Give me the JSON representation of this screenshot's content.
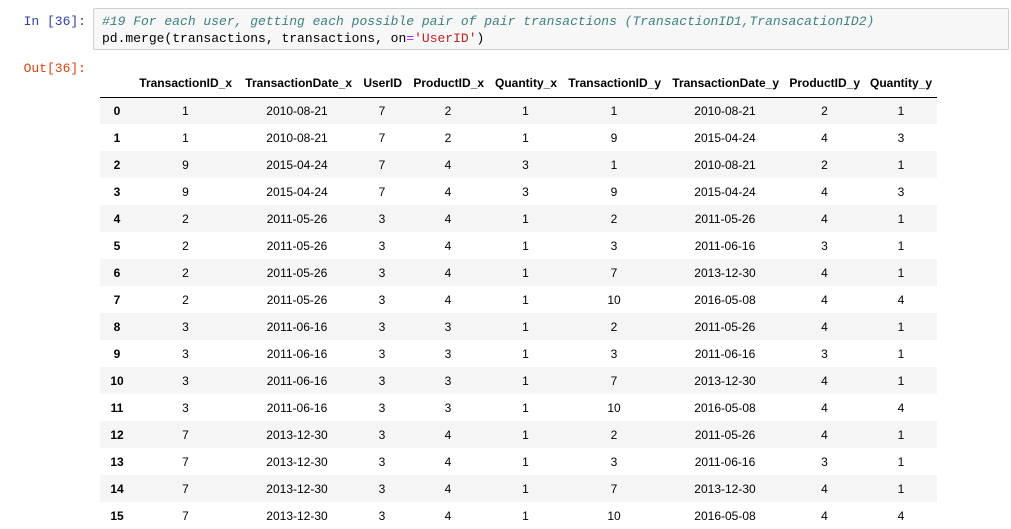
{
  "cell": {
    "in_prompt": "In [36]:",
    "out_prompt": "Out[36]:",
    "code": {
      "line1_comment": "#19 For each user, getting each possible pair of pair transactions (TransactionID1,TransacationID2)",
      "line2_part1": "pd",
      "line2_part2": ".",
      "line2_part3": "merge(transactions, transactions, on",
      "line2_op": "=",
      "line2_str": "'UserID'",
      "line2_end": ")"
    }
  },
  "table": {
    "columns": [
      "TransactionID_x",
      "TransactionDate_x",
      "UserID",
      "ProductID_x",
      "Quantity_x",
      "TransactionID_y",
      "TransactionDate_y",
      "ProductID_y",
      "Quantity_y"
    ],
    "rows": [
      {
        "idx": "0",
        "cells": [
          "1",
          "2010-08-21",
          "7",
          "2",
          "1",
          "1",
          "2010-08-21",
          "2",
          "1"
        ]
      },
      {
        "idx": "1",
        "cells": [
          "1",
          "2010-08-21",
          "7",
          "2",
          "1",
          "9",
          "2015-04-24",
          "4",
          "3"
        ]
      },
      {
        "idx": "2",
        "cells": [
          "9",
          "2015-04-24",
          "7",
          "4",
          "3",
          "1",
          "2010-08-21",
          "2",
          "1"
        ]
      },
      {
        "idx": "3",
        "cells": [
          "9",
          "2015-04-24",
          "7",
          "4",
          "3",
          "9",
          "2015-04-24",
          "4",
          "3"
        ]
      },
      {
        "idx": "4",
        "cells": [
          "2",
          "2011-05-26",
          "3",
          "4",
          "1",
          "2",
          "2011-05-26",
          "4",
          "1"
        ]
      },
      {
        "idx": "5",
        "cells": [
          "2",
          "2011-05-26",
          "3",
          "4",
          "1",
          "3",
          "2011-06-16",
          "3",
          "1"
        ]
      },
      {
        "idx": "6",
        "cells": [
          "2",
          "2011-05-26",
          "3",
          "4",
          "1",
          "7",
          "2013-12-30",
          "4",
          "1"
        ]
      },
      {
        "idx": "7",
        "cells": [
          "2",
          "2011-05-26",
          "3",
          "4",
          "1",
          "10",
          "2016-05-08",
          "4",
          "4"
        ]
      },
      {
        "idx": "8",
        "cells": [
          "3",
          "2011-06-16",
          "3",
          "3",
          "1",
          "2",
          "2011-05-26",
          "4",
          "1"
        ]
      },
      {
        "idx": "9",
        "cells": [
          "3",
          "2011-06-16",
          "3",
          "3",
          "1",
          "3",
          "2011-06-16",
          "3",
          "1"
        ]
      },
      {
        "idx": "10",
        "cells": [
          "3",
          "2011-06-16",
          "3",
          "3",
          "1",
          "7",
          "2013-12-30",
          "4",
          "1"
        ]
      },
      {
        "idx": "11",
        "cells": [
          "3",
          "2011-06-16",
          "3",
          "3",
          "1",
          "10",
          "2016-05-08",
          "4",
          "4"
        ]
      },
      {
        "idx": "12",
        "cells": [
          "7",
          "2013-12-30",
          "3",
          "4",
          "1",
          "2",
          "2011-05-26",
          "4",
          "1"
        ]
      },
      {
        "idx": "13",
        "cells": [
          "7",
          "2013-12-30",
          "3",
          "4",
          "1",
          "3",
          "2011-06-16",
          "3",
          "1"
        ]
      },
      {
        "idx": "14",
        "cells": [
          "7",
          "2013-12-30",
          "3",
          "4",
          "1",
          "7",
          "2013-12-30",
          "4",
          "1"
        ]
      },
      {
        "idx": "15",
        "cells": [
          "7",
          "2013-12-30",
          "3",
          "4",
          "1",
          "10",
          "2016-05-08",
          "4",
          "4"
        ]
      }
    ]
  },
  "colors": {
    "in_prompt": "#303f9f",
    "out_prompt": "#d84315",
    "comment": "#408080",
    "string": "#ba2121",
    "operator": "#aa22ff",
    "input_bg": "#f7f7f7"
  }
}
